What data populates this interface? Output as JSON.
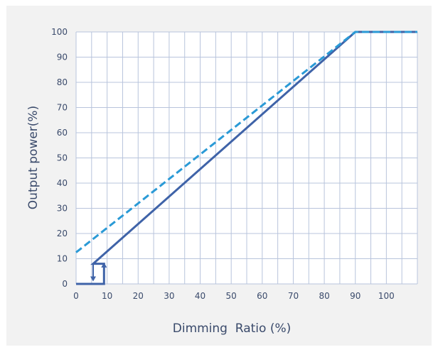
{
  "chart_data": {
    "type": "line",
    "title": "",
    "xlabel": "Dimming  Ratio (%)",
    "ylabel": "Output power(%)",
    "xlim": [
      0,
      110
    ],
    "ylim": [
      0,
      100
    ],
    "x_ticks": [
      0,
      10,
      20,
      30,
      40,
      50,
      60,
      70,
      80,
      90,
      100
    ],
    "y_ticks": [
      0,
      10,
      20,
      30,
      40,
      50,
      60,
      70,
      80,
      90,
      100
    ],
    "grid": true,
    "series": [
      {
        "style": "solid",
        "color": "#3f63a8",
        "points": [
          [
            0,
            0
          ],
          [
            9,
            0
          ],
          [
            9,
            8
          ],
          [
            5.5,
            8
          ],
          [
            5.5,
            8
          ],
          [
            90,
            100
          ],
          [
            110,
            100
          ]
        ]
      },
      {
        "style": "dashed",
        "color": "#2a9ad6",
        "points": [
          [
            0,
            12.5
          ],
          [
            90,
            100
          ],
          [
            110,
            100
          ]
        ]
      }
    ],
    "annotations": [
      {
        "type": "arrow-down",
        "color": "#3f63a8",
        "x": 5.5,
        "y_from": 8,
        "y_to": 1
      },
      {
        "type": "arrow-up",
        "color": "#3f63a8",
        "x": 9,
        "y_from": 0,
        "y_to": 8.5
      }
    ]
  }
}
